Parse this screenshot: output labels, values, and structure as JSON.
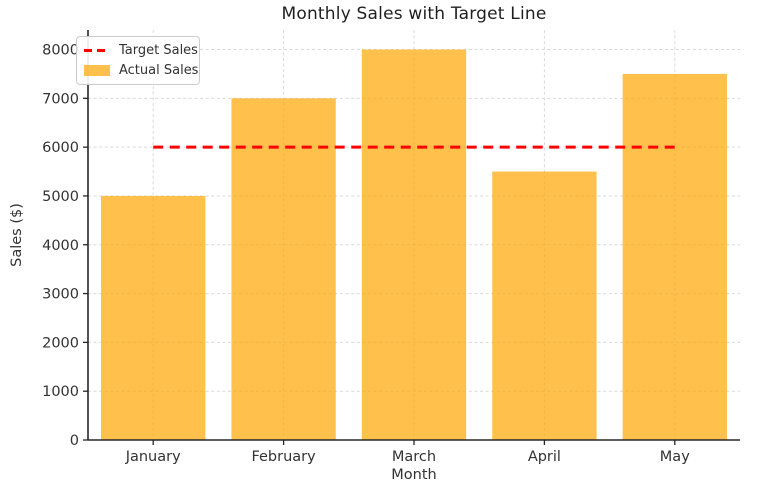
{
  "chart_data": {
    "type": "bar",
    "title": "Monthly Sales with Target Line",
    "xlabel": "Month",
    "ylabel": "Sales ($)",
    "categories": [
      "January",
      "February",
      "March",
      "April",
      "May"
    ],
    "series": [
      {
        "name": "Actual Sales",
        "type": "bar",
        "values": [
          5000,
          7000,
          8000,
          5500,
          7500
        ],
        "color": "#FFA500",
        "opacity": 0.7
      },
      {
        "name": "Target Sales",
        "type": "hline",
        "value": 6000,
        "color": "#FF0000",
        "style": "dashed",
        "extent": "first-to-last-category"
      }
    ],
    "ylim": [
      0,
      8400
    ],
    "yticks": [
      0,
      1000,
      2000,
      3000,
      4000,
      5000,
      6000,
      7000,
      8000
    ],
    "grid": true,
    "grid_style": "dashed",
    "legend": {
      "position": "upper-left",
      "items": [
        {
          "label": "Target Sales",
          "swatch": "dashed-line",
          "color": "#FF0000"
        },
        {
          "label": "Actual Sales",
          "swatch": "filled-rect",
          "color": "#FFA500",
          "opacity": 0.7
        }
      ]
    },
    "colors": {
      "grid": "#D9D9D9",
      "spine": "#262626",
      "tick_label": "#333333",
      "title": "#1F1F1F",
      "background": "#FFFFFF"
    }
  }
}
